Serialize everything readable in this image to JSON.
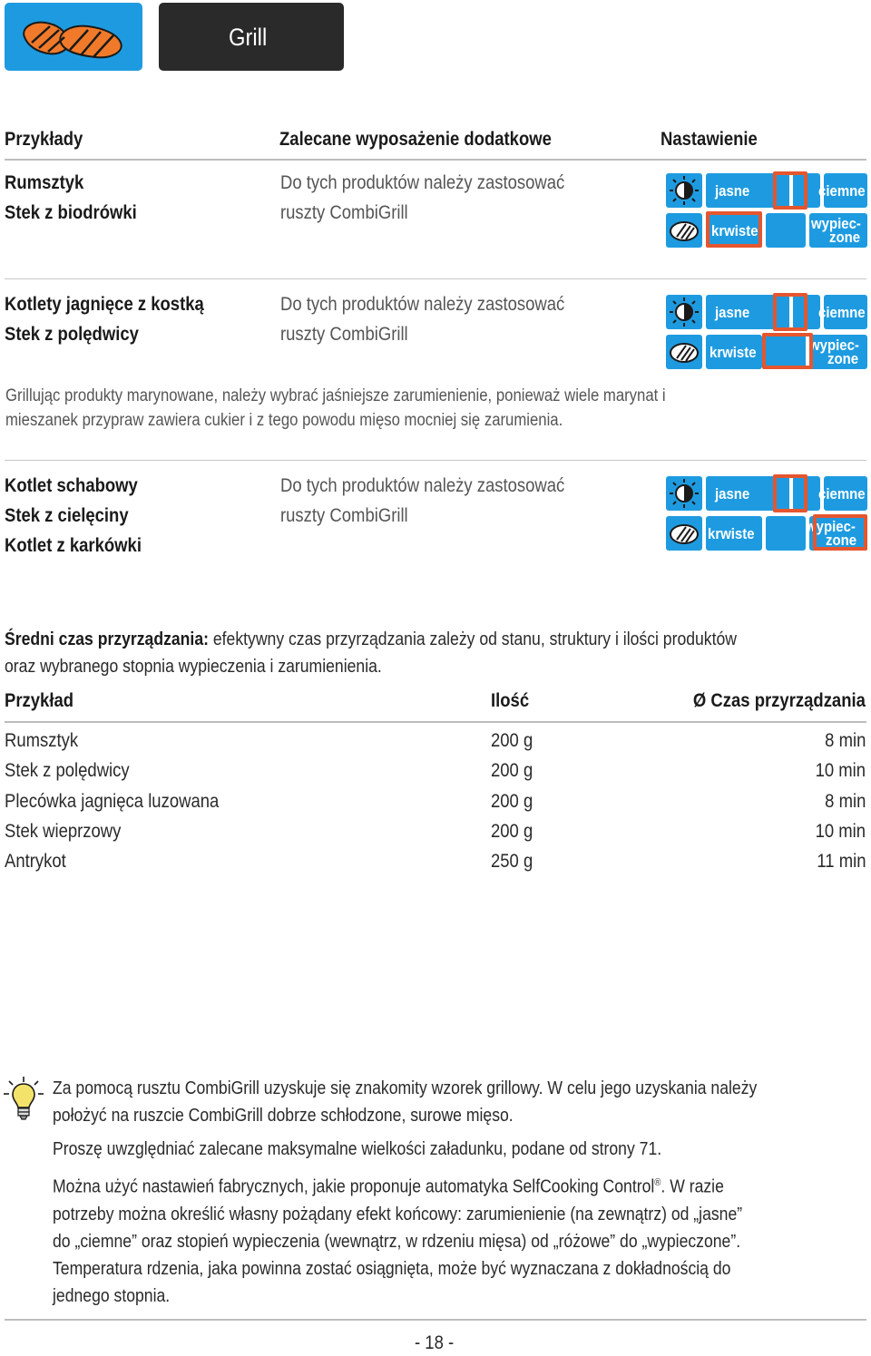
{
  "header": {
    "title": "Grill",
    "icon": "grilled-steak-icon"
  },
  "columns": {
    "examples": "Przykłady",
    "equipment": "Zalecane wyposażenie dodatkowe",
    "settings": "Nastawienie"
  },
  "panel_labels": {
    "light": "jasne",
    "dark": "ciemne",
    "rare": "krwiste",
    "well_done_1": "wypiec-",
    "well_done_2": "zone"
  },
  "groups": [
    {
      "items": [
        "Rumsztyk",
        "Stek z biodrówki"
      ],
      "equipment_1": "Do tych produktów należy zastosować",
      "equipment_2": "ruszty CombiGrill",
      "browning": "middle",
      "doneness": "rare"
    },
    {
      "items": [
        "Kotlety jagnięce z kostką",
        "Stek z polędwicy"
      ],
      "equipment_1": "Do tych produktów należy zastosować",
      "equipment_2": "ruszty CombiGrill",
      "browning": "middle",
      "doneness": "medium"
    },
    {
      "items": [
        "Kotlet schabowy",
        "Stek z cielęciny",
        "Kotlet z karkówki"
      ],
      "equipment_1": "Do tych produktów należy zastosować",
      "equipment_2": "ruszty CombiGrill",
      "browning": "middle",
      "doneness": "well-done"
    }
  ],
  "marinade_note": {
    "line1": "Grillując produkty marynowane, należy wybrać jaśniejsze zarumienienie, ponieważ wiele marynat i",
    "line2": "mieszanek przypraw zawiera cukier i z tego powodu mięso mocniej się zarumienia."
  },
  "cooking_time": {
    "label": "Średni czas przyrządzania:",
    "text1": " efektywny czas przyrządzania zależy od stanu, struktury i ilości produktów",
    "text2": "oraz wybranego stopnia wypieczenia i zarumienienia."
  },
  "table": {
    "headers": [
      "Przykład",
      "Ilość",
      "Ø Czas przyrządzania"
    ],
    "rows": [
      [
        "Rumsztyk",
        "200 g",
        "8 min"
      ],
      [
        "Stek z polędwicy",
        "200 g",
        "10 min"
      ],
      [
        "Plecówka jagnięca luzowana",
        "200 g",
        "8 min"
      ],
      [
        "Stek wieprzowy",
        "200 g",
        "10 min"
      ],
      [
        "Antrykot",
        "250 g",
        "11 min"
      ]
    ]
  },
  "tips": {
    "icon": "lightbulb-icon",
    "p1_l1": "Za pomocą rusztu CombiGrill uzyskuje się znakomity wzorek grillowy. W celu jego uzyskania należy",
    "p1_l2": "położyć na ruszcie CombiGrill dobrze schłodzone, surowe mięso.",
    "p2": "Proszę uwzględniać zalecane maksymalne wielkości załadunku, podane od strony 71.",
    "p3_l1a": "Można użyć nastawień fabrycznych, jakie proponuje automatyka SelfCooking Control",
    "p3_reg": "®",
    "p3_l1b": ". W razie",
    "p3_l2": "potrzeby można określić własny pożądany efekt końcowy: zarumienienie (na zewnątrz) od „jasne”",
    "p3_l3": "do „ciemne” oraz stopień wypieczenia (wewnątrz, w rdzeniu mięsa) od „różowe” do „wypieczone”.",
    "p3_l4": "Temperatura rdzenia, jaka powinna zostać osiągnięta, może być wyznaczana z dokładnością do",
    "p3_l5": "jednego stopnia."
  },
  "page_number": "- 18 -"
}
